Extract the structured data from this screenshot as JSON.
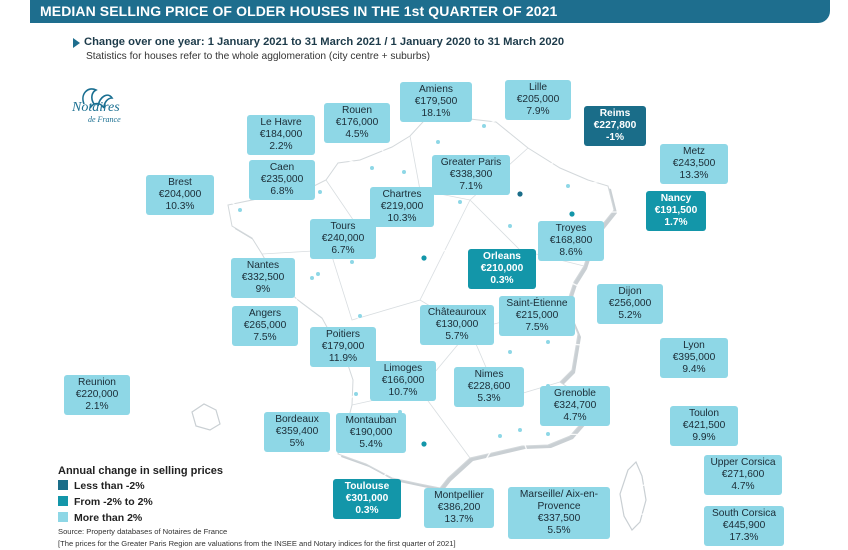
{
  "title": "MEDIAN SELLING PRICE OF OLDER HOUSES IN THE 1st QUARTER OF 2021",
  "subtitle": "Change over one year: 1 January 2021 to 31 March 2021 / 1 January 2020 to 31 March 2020",
  "note": "Statistics for houses refer to the whole agglomeration (city centre + suburbs)",
  "logo": {
    "name": "Notaires",
    "sub": "de France"
  },
  "colors": {
    "less": "#1a6d89",
    "mid": "#1396a9",
    "more": "#8ed7e6",
    "map": "#ffffff",
    "mapShadow": "#c9cfd3"
  },
  "legend": {
    "title": "Annual change in selling prices",
    "items": [
      {
        "label": "Less than -2%",
        "cls": "less"
      },
      {
        "label": "From -2% to 2%",
        "cls": "mid"
      },
      {
        "label": "More than 2%",
        "cls": "more"
      }
    ]
  },
  "cities": [
    {
      "id": "amiens",
      "name": "Amiens",
      "price": "€179,500",
      "change": "18.1%",
      "cls": "more"
    },
    {
      "id": "lille",
      "name": "Lille",
      "price": "€205,000",
      "change": "7.9%",
      "cls": "more"
    },
    {
      "id": "reims",
      "name": "Reims",
      "price": "€227,800",
      "change": "-1%",
      "cls": "mid"
    },
    {
      "id": "rouen",
      "name": "Rouen",
      "price": "€176,000",
      "change": "4.5%",
      "cls": "more"
    },
    {
      "id": "lehavre",
      "name": "Le Havre",
      "price": "€184,000",
      "change": "2.2%",
      "cls": "more"
    },
    {
      "id": "metz",
      "name": "Metz",
      "price": "€243,500",
      "change": "13.3%",
      "cls": "more"
    },
    {
      "id": "caen",
      "name": "Caen",
      "price": "€235,000",
      "change": "6.8%",
      "cls": "more"
    },
    {
      "id": "greaterparis",
      "name": "Greater Paris",
      "price": "€338,300",
      "change": "7.1%",
      "cls": "more"
    },
    {
      "id": "brest",
      "name": "Brest",
      "price": "€204,000",
      "change": "10.3%",
      "cls": "more"
    },
    {
      "id": "chartres",
      "name": "Chartres",
      "price": "€219,000",
      "change": "10.3%",
      "cls": "more"
    },
    {
      "id": "nancy",
      "name": "Nancy",
      "price": "€191,500",
      "change": "1.7%",
      "cls": "mid"
    },
    {
      "id": "tours",
      "name": "Tours",
      "price": "€240,000",
      "change": "6.7%",
      "cls": "more"
    },
    {
      "id": "troyes",
      "name": "Troyes",
      "price": "€168,800",
      "change": "8.6%",
      "cls": "more"
    },
    {
      "id": "orleans",
      "name": "Orleans",
      "price": "€210,000",
      "change": "0.3%",
      "cls": "mid"
    },
    {
      "id": "nantes",
      "name": "Nantes",
      "price": "€332,500",
      "change": "9%",
      "cls": "more"
    },
    {
      "id": "dijon",
      "name": "Dijon",
      "price": "€256,000",
      "change": "5.2%",
      "cls": "more"
    },
    {
      "id": "angers",
      "name": "Angers",
      "price": "€265,000",
      "change": "7.5%",
      "cls": "more"
    },
    {
      "id": "chateauroux",
      "name": "Châteauroux",
      "price": "€130,000",
      "change": "5.7%",
      "cls": "more"
    },
    {
      "id": "saintetienne",
      "name": "Saint-Étienne",
      "price": "€215,000",
      "change": "7.5%",
      "cls": "more"
    },
    {
      "id": "poitiers",
      "name": "Poitiers",
      "price": "€179,000",
      "change": "11.9%",
      "cls": "more"
    },
    {
      "id": "lyon",
      "name": "Lyon",
      "price": "€395,000",
      "change": "9.4%",
      "cls": "more"
    },
    {
      "id": "limoges",
      "name": "Limoges",
      "price": "€166,000",
      "change": "10.7%",
      "cls": "more"
    },
    {
      "id": "nimes",
      "name": "Nimes",
      "price": "€228,600",
      "change": "5.3%",
      "cls": "more"
    },
    {
      "id": "reunion",
      "name": "Reunion",
      "price": "€220,000",
      "change": "2.1%",
      "cls": "more"
    },
    {
      "id": "grenoble",
      "name": "Grenoble",
      "price": "€324,700",
      "change": "4.7%",
      "cls": "more"
    },
    {
      "id": "bordeaux",
      "name": "Bordeaux",
      "price": "€359,400",
      "change": "5%",
      "cls": "more"
    },
    {
      "id": "montauban",
      "name": "Montauban",
      "price": "€190,000",
      "change": "5.4%",
      "cls": "more"
    },
    {
      "id": "toulon",
      "name": "Toulon",
      "price": "€421,500",
      "change": "9.9%",
      "cls": "more"
    },
    {
      "id": "uppercorsica",
      "name": "Upper Corsica",
      "price": "€271,600",
      "change": "4.7%",
      "cls": "more"
    },
    {
      "id": "toulouse",
      "name": "Toulouse",
      "price": "€301,000",
      "change": "0.3%",
      "cls": "mid"
    },
    {
      "id": "montpellier",
      "name": "Montpellier",
      "price": "€386,200",
      "change": "13.7%",
      "cls": "more"
    },
    {
      "id": "marseille",
      "name": "Marseille/ Aix-en-Provence",
      "price": "€337,500",
      "change": "5.5%",
      "cls": "more"
    },
    {
      "id": "southcorsica",
      "name": "South Corsica",
      "price": "€445,900",
      "change": "17.3%",
      "cls": "more"
    }
  ],
  "source": "Source: Property databases of Notaires de France",
  "source_note": "[The prices for the Greater Paris Region are valuations from the INSEE and Notary indices for the first quarter of 2021]"
}
